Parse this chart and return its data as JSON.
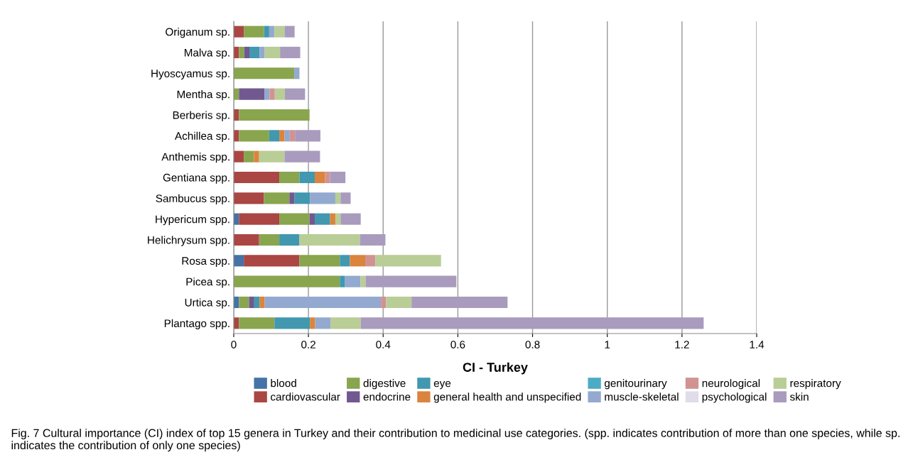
{
  "chart_data": {
    "type": "bar",
    "orientation": "horizontal",
    "stacked": true,
    "categories": [
      "Origanum sp.",
      "Malva sp.",
      "Hyoscyamus sp.",
      "Mentha sp.",
      "Berberis sp.",
      "Achillea sp.",
      "Anthemis spp.",
      "Gentiana spp.",
      "Sambucus spp.",
      "Hypericum spp.",
      "Helichrysum spp.",
      "Rosa spp.",
      "Picea sp.",
      "Urtica sp.",
      "Plantago spp."
    ],
    "series": [
      {
        "name": "blood",
        "color": "#4572a7",
        "values": [
          0,
          0,
          0,
          0,
          0,
          0,
          0,
          0,
          0,
          0.014,
          0,
          0.027,
          0,
          0.014,
          0
        ]
      },
      {
        "name": "cardiovascular",
        "color": "#aa4643",
        "values": [
          0.027,
          0.014,
          0,
          0,
          0.014,
          0.014,
          0.027,
          0.122,
          0.081,
          0.108,
          0.068,
          0.149,
          0,
          0,
          0.014
        ]
      },
      {
        "name": "digestive",
        "color": "#89a54e",
        "values": [
          0.054,
          0.014,
          0.162,
          0.014,
          0.189,
          0.081,
          0.027,
          0.054,
          0.068,
          0.081,
          0.054,
          0.108,
          0.284,
          0.027,
          0.095
        ]
      },
      {
        "name": "endocrine",
        "color": "#71588f",
        "values": [
          0,
          0.014,
          0,
          0.068,
          0,
          0,
          0,
          0,
          0.014,
          0.014,
          0,
          0,
          0,
          0.014,
          0
        ]
      },
      {
        "name": "eye",
        "color": "#4198af",
        "values": [
          0.014,
          0.027,
          0,
          0,
          0,
          0.027,
          0,
          0.041,
          0.041,
          0.041,
          0.054,
          0.027,
          0.014,
          0.014,
          0.095
        ]
      },
      {
        "name": "general health and unspecified",
        "color": "#db843d",
        "values": [
          0,
          0,
          0,
          0,
          0,
          0.014,
          0.014,
          0.027,
          0,
          0.014,
          0,
          0.041,
          0,
          0.014,
          0.014
        ]
      },
      {
        "name": "genitourinary",
        "color": "#4bacc6",
        "values": [
          0,
          0,
          0,
          0,
          0,
          0,
          0,
          0,
          0,
          0,
          0,
          0,
          0,
          0,
          0
        ]
      },
      {
        "name": "muscle-skeletal",
        "color": "#93a9cf",
        "values": [
          0.014,
          0.014,
          0.014,
          0.014,
          0,
          0.014,
          0,
          0,
          0.068,
          0,
          0,
          0,
          0.041,
          0.311,
          0.041
        ]
      },
      {
        "name": "neurological",
        "color": "#d19392",
        "values": [
          0,
          0,
          0,
          0.014,
          0,
          0.014,
          0,
          0.014,
          0,
          0,
          0,
          0.027,
          0,
          0.014,
          0
        ]
      },
      {
        "name": "psychological",
        "color": "#e0dcea",
        "values": [
          0,
          0,
          0,
          0,
          0,
          0,
          0,
          0,
          0,
          0,
          0,
          0,
          0,
          0,
          0
        ]
      },
      {
        "name": "respiratory",
        "color": "#b9cd96",
        "values": [
          0.027,
          0.041,
          0,
          0.027,
          0,
          0,
          0.068,
          0,
          0.014,
          0.014,
          0.162,
          0.176,
          0.014,
          0.068,
          0.081
        ]
      },
      {
        "name": "skin",
        "color": "#a99bbd",
        "values": [
          0.027,
          0.054,
          0,
          0.054,
          0,
          0.068,
          0.095,
          0.041,
          0.027,
          0.054,
          0.068,
          0,
          0.243,
          0.257,
          0.918
        ]
      }
    ],
    "xlabel": "CI - Turkey",
    "xlim": [
      0,
      1.4
    ],
    "xticks": [
      0,
      0.2,
      0.4,
      0.6,
      0.8,
      1,
      1.2,
      1.4
    ],
    "grid": "x",
    "legend": "bottom",
    "annotations": [
      "Fig. 7 Cultural importance (CI) index of top 15 genera in Turkey and their contribution to medicinal use categories. (spp. indicates contribution of more than one species, while sp. indicates the contribution of only one species)"
    ]
  }
}
